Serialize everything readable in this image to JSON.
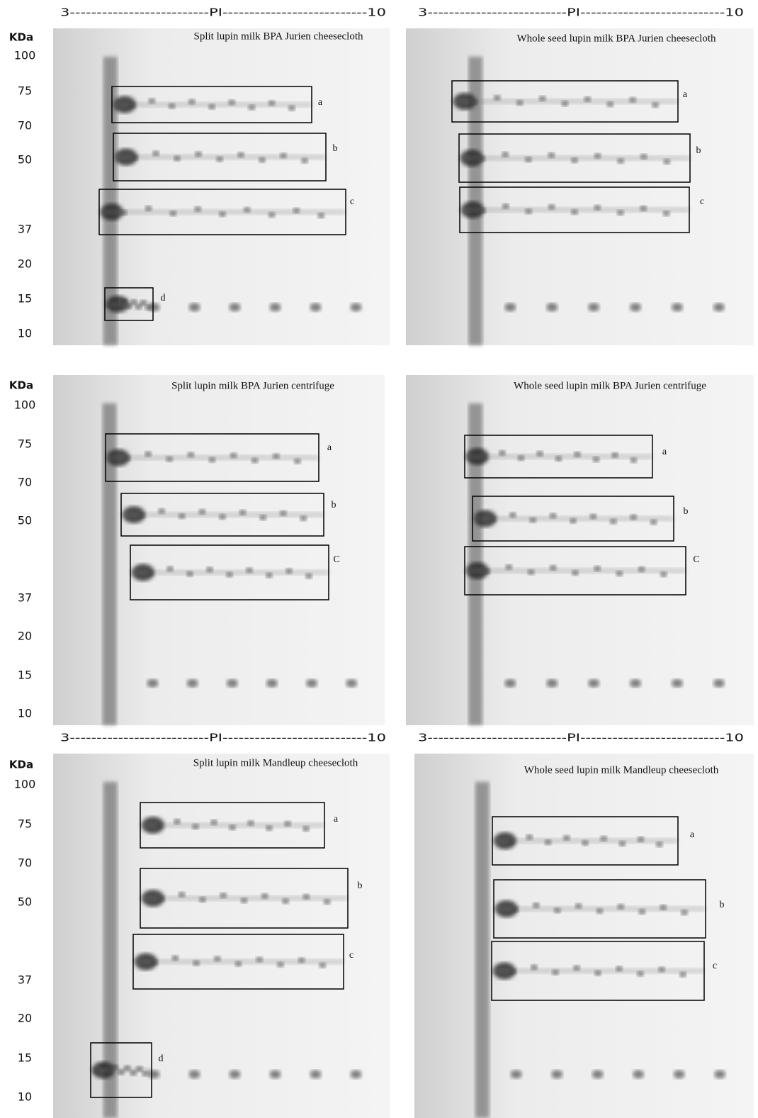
{
  "pi_headers": [
    "3--------------------------PI---------------------------10",
    "3--------------------------PI---------------------------10",
    "3--------------------------PI---------------------------10",
    "3--------------------------PI---------------------------10"
  ],
  "kda_rows": [
    {
      "title": "KDa",
      "ticks": [
        "100",
        "75",
        "70",
        "50",
        "37",
        "20",
        "15",
        "10"
      ]
    },
    {
      "title": "KDa",
      "ticks": [
        "100",
        "75",
        "70",
        "50",
        "37",
        "20",
        "15",
        "10"
      ]
    },
    {
      "title": "KDa",
      "ticks": [
        "100",
        "75",
        "70",
        "50",
        "37",
        "20",
        "15",
        "10"
      ]
    }
  ],
  "panels": [
    {
      "title": "Split lupin milk BPA Jurien cheesecloth",
      "boxes": [
        "a",
        "b",
        "c",
        "d"
      ]
    },
    {
      "title": "Whole seed lupin milk BPA Jurien cheesecloth",
      "boxes": [
        "a",
        "b",
        "c"
      ]
    },
    {
      "title": "Split lupin milk BPA Jurien centrifuge",
      "boxes": [
        "a",
        "b",
        "C"
      ]
    },
    {
      "title": "Whole seed lupin milk BPA Jurien centrifuge",
      "boxes": [
        "a",
        "b",
        "C"
      ]
    },
    {
      "title": "Split lupin milk Mandleup cheesecloth",
      "boxes": [
        "a",
        "b",
        "c",
        "d"
      ]
    },
    {
      "title": "Whole seed lupin milk Mandleup cheesecloth",
      "boxes": [
        "a",
        "b",
        "c"
      ]
    }
  ]
}
